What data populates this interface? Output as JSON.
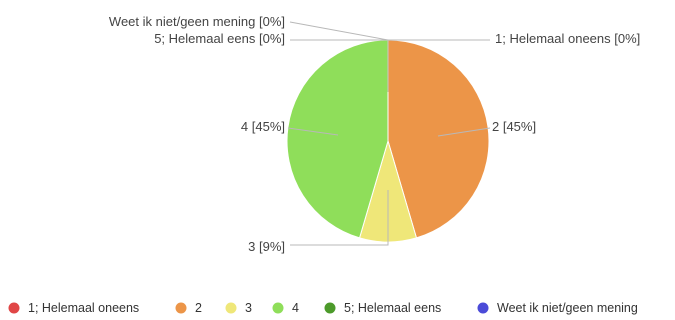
{
  "chart_data": {
    "type": "pie",
    "title": "",
    "slices": [
      {
        "label": "1; Helemaal oneens",
        "value": 0,
        "percent_label": "1; Helemaal oneens [0%]",
        "color": "#e04646"
      },
      {
        "label": "2",
        "value": 45,
        "percent_label": "2 [45%]",
        "color": "#ec9548"
      },
      {
        "label": "3",
        "value": 9,
        "percent_label": "3 [9%]",
        "color": "#efe779"
      },
      {
        "label": "4",
        "value": 45,
        "percent_label": "4 [45%]",
        "color": "#8fde5a"
      },
      {
        "label": "5; Helemaal eens",
        "value": 0,
        "percent_label": "5; Helemaal eens [0%]",
        "color": "#4c9a2a"
      },
      {
        "label": "Weet ik niet/geen mening",
        "value": 0,
        "percent_label": "Weet ik niet/geen mening [0%]",
        "color": "#4b4bd8"
      }
    ],
    "legend_position": "bottom"
  }
}
